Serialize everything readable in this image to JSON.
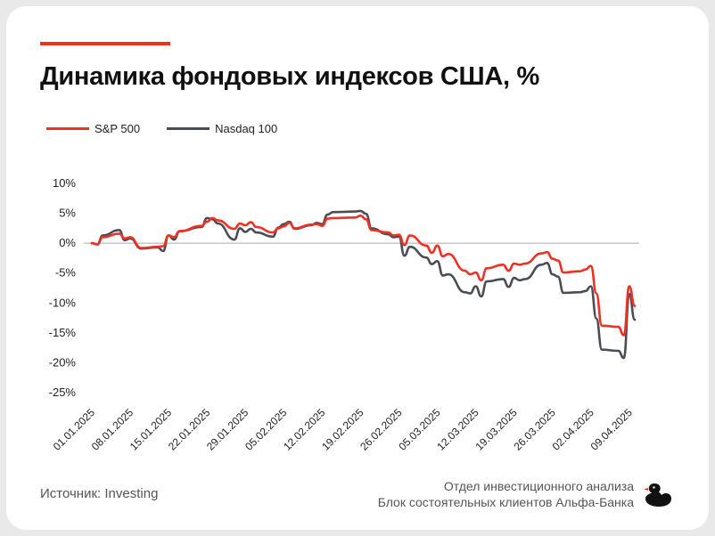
{
  "title": "Динамика фондовых индексов США, %",
  "source": "Источник: Investing",
  "footer": {
    "line1": "Отдел инвестиционного анализа",
    "line2": "Блок состоятельных клиентов Альфа-Банка"
  },
  "colors": {
    "accent": "#ef3124",
    "sp500": "#ef3124",
    "nasdaq": "#4a4e54",
    "axis": "#999999",
    "text": "#222222"
  },
  "logo_icon": "duck-icon",
  "chart_data": {
    "type": "line",
    "title": "Динамика фондовых индексов США, %",
    "xlabel": "",
    "ylabel": "",
    "ylim": [
      -25,
      10
    ],
    "yticks": [
      10,
      5,
      0,
      -5,
      -10,
      -15,
      -20,
      -25
    ],
    "ytick_labels": [
      "10%",
      "5%",
      "0%",
      "-5%",
      "-10%",
      "-15%",
      "-20%",
      "-25%"
    ],
    "xticks": [
      "01.01.2025",
      "08.01.2025",
      "15.01.2025",
      "22.01.2025",
      "29.01.2025",
      "05.02.2025",
      "12.02.2025",
      "19.02.2025",
      "26.02.2025",
      "05.03.2025",
      "12.03.2025",
      "19.03.2025",
      "26.03.2025",
      "02.04.2025",
      "09.04.2025"
    ],
    "grid": false,
    "legend": "top-left",
    "x": [
      "2025-01-01",
      "2025-01-02",
      "2025-01-03",
      "2025-01-06",
      "2025-01-07",
      "2025-01-08",
      "2025-01-10",
      "2025-01-13",
      "2025-01-14",
      "2025-01-15",
      "2025-01-16",
      "2025-01-17",
      "2025-01-21",
      "2025-01-22",
      "2025-01-23",
      "2025-01-24",
      "2025-01-27",
      "2025-01-28",
      "2025-01-29",
      "2025-01-30",
      "2025-01-31",
      "2025-02-03",
      "2025-02-04",
      "2025-02-05",
      "2025-02-06",
      "2025-02-07",
      "2025-02-10",
      "2025-02-11",
      "2025-02-12",
      "2025-02-13",
      "2025-02-14",
      "2025-02-18",
      "2025-02-19",
      "2025-02-20",
      "2025-02-21",
      "2025-02-24",
      "2025-02-25",
      "2025-02-26",
      "2025-02-27",
      "2025-02-28",
      "2025-03-03",
      "2025-03-04",
      "2025-03-05",
      "2025-03-06",
      "2025-03-07",
      "2025-03-10",
      "2025-03-11",
      "2025-03-12",
      "2025-03-13",
      "2025-03-14",
      "2025-03-17",
      "2025-03-18",
      "2025-03-19",
      "2025-03-20",
      "2025-03-21",
      "2025-03-24",
      "2025-03-25",
      "2025-03-26",
      "2025-03-27",
      "2025-03-28",
      "2025-03-31",
      "2025-04-01",
      "2025-04-02",
      "2025-04-03",
      "2025-04-04",
      "2025-04-07",
      "2025-04-08",
      "2025-04-09",
      "2025-04-10"
    ],
    "series": [
      {
        "name": "S&P 500",
        "values": [
          0.0,
          -0.2,
          1.0,
          1.6,
          0.8,
          1.0,
          -0.8,
          -0.6,
          -0.5,
          1.3,
          1.0,
          2.0,
          2.9,
          3.6,
          4.2,
          3.8,
          2.4,
          3.3,
          3.0,
          3.5,
          2.7,
          1.8,
          2.5,
          2.8,
          3.4,
          2.5,
          3.1,
          3.2,
          2.9,
          4.1,
          4.2,
          4.3,
          4.6,
          4.0,
          2.2,
          1.8,
          1.3,
          1.4,
          -0.3,
          1.3,
          -0.4,
          -1.6,
          -0.4,
          -2.2,
          -1.8,
          -4.6,
          -5.2,
          -4.9,
          -6.2,
          -4.2,
          -3.6,
          -4.6,
          -3.4,
          -3.6,
          -3.4,
          -1.7,
          -1.5,
          -2.6,
          -2.9,
          -4.9,
          -4.7,
          -4.4,
          -3.8,
          -8.4,
          -13.8,
          -14.0,
          -15.4,
          -7.2,
          -10.5
        ]
      },
      {
        "name": "Nasdaq 100",
        "values": [
          0.0,
          -0.2,
          1.3,
          2.2,
          0.5,
          0.8,
          -0.9,
          -0.7,
          -1.3,
          1.3,
          0.6,
          2.0,
          2.7,
          4.2,
          4.0,
          3.3,
          0.6,
          2.5,
          1.9,
          2.4,
          1.8,
          1.1,
          2.6,
          3.2,
          3.6,
          2.4,
          3.0,
          3.4,
          3.2,
          4.8,
          5.2,
          5.3,
          5.4,
          4.9,
          2.5,
          1.5,
          1.0,
          1.1,
          -2.1,
          -0.6,
          -2.4,
          -3.5,
          -3.0,
          -5.4,
          -5.2,
          -8.2,
          -8.4,
          -7.2,
          -8.9,
          -6.4,
          -6.0,
          -7.3,
          -5.8,
          -6.2,
          -6.0,
          -3.6,
          -3.3,
          -5.2,
          -5.6,
          -8.3,
          -8.2,
          -8.0,
          -7.2,
          -12.6,
          -17.8,
          -18.0,
          -19.2,
          -8.5,
          -12.8
        ]
      }
    ]
  }
}
